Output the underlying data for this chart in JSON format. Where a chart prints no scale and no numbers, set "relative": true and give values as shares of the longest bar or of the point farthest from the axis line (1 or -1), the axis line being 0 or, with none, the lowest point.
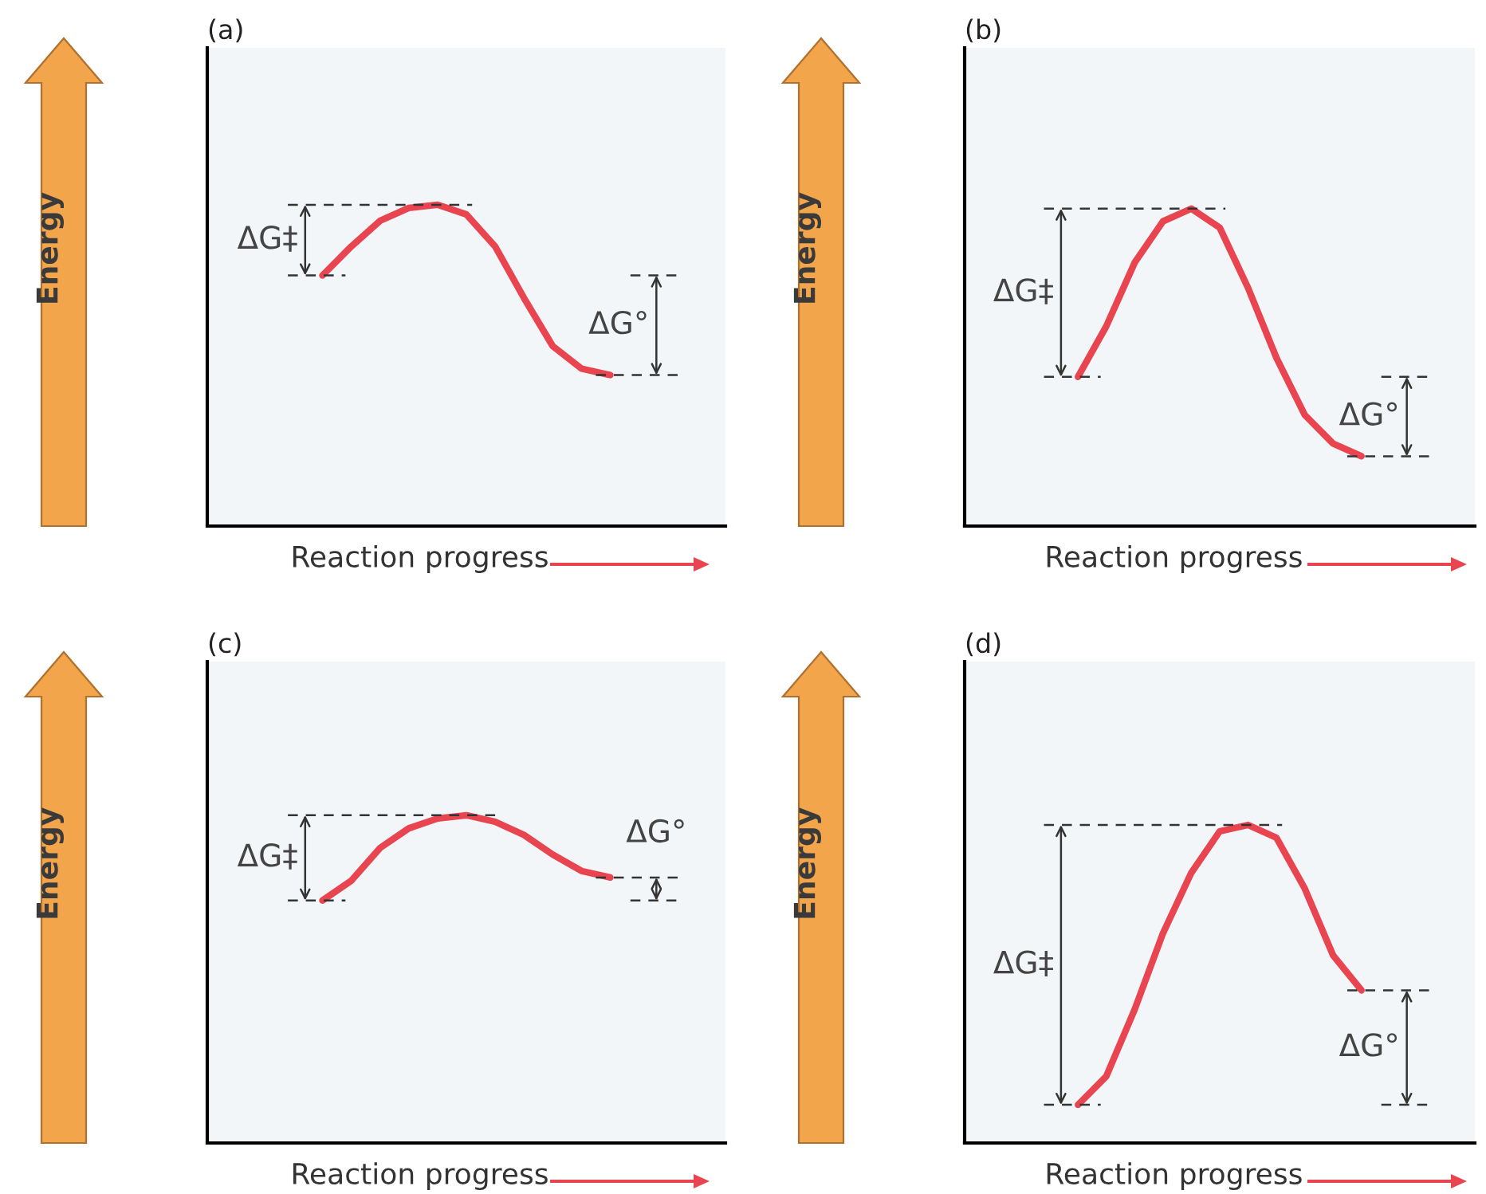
{
  "chart_data": [
    {
      "type": "line",
      "title": "(a)",
      "xlabel": "Reaction progress",
      "ylabel": "Energy",
      "relative": true,
      "categories": [
        null,
        null,
        null,
        null,
        null,
        null,
        null,
        null,
        null,
        null,
        null
      ],
      "series": [
        {
          "color": "#e84550",
          "values": [
            0.78,
            0.87,
            0.95,
            0.99,
            1,
            0.97,
            0.87,
            0.71,
            0.56,
            0.49,
            0.47
          ]
        }
      ],
      "annotations": [
        "ΔG‡",
        "ΔG°"
      ]
    },
    {
      "type": "line",
      "title": "(b)",
      "xlabel": "Reaction progress",
      "ylabel": "Energy",
      "relative": true,
      "categories": [
        null,
        null,
        null,
        null,
        null,
        null,
        null,
        null,
        null,
        null,
        null
      ],
      "series": [
        {
          "color": "#e84550",
          "values": [
            0.47,
            0.63,
            0.83,
            0.96,
            1,
            0.94,
            0.75,
            0.53,
            0.35,
            0.26,
            0.22
          ]
        }
      ],
      "annotations": [
        "ΔG‡",
        "ΔG°"
      ]
    },
    {
      "type": "line",
      "title": "(c)",
      "xlabel": "Reaction progress",
      "ylabel": "Energy",
      "relative": true,
      "categories": [
        null,
        null,
        null,
        null,
        null,
        null,
        null,
        null,
        null,
        null,
        null
      ],
      "series": [
        {
          "color": "#e84550",
          "values": [
            0.74,
            0.8,
            0.9,
            0.96,
            0.99,
            1,
            0.98,
            0.94,
            0.88,
            0.83,
            0.81
          ]
        }
      ],
      "annotations": [
        "ΔG‡",
        "ΔG°"
      ]
    },
    {
      "type": "line",
      "title": "(d)",
      "xlabel": "Reaction progress",
      "ylabel": "Energy",
      "relative": true,
      "categories": [
        null,
        null,
        null,
        null,
        null,
        null,
        null,
        null,
        null,
        null,
        null
      ],
      "series": [
        {
          "color": "#e84550",
          "values": [
            0.12,
            0.21,
            0.42,
            0.66,
            0.85,
            0.98,
            1,
            0.96,
            0.8,
            0.59,
            0.48
          ]
        }
      ],
      "annotations": [
        "ΔG‡",
        "ΔG°"
      ]
    }
  ]
}
